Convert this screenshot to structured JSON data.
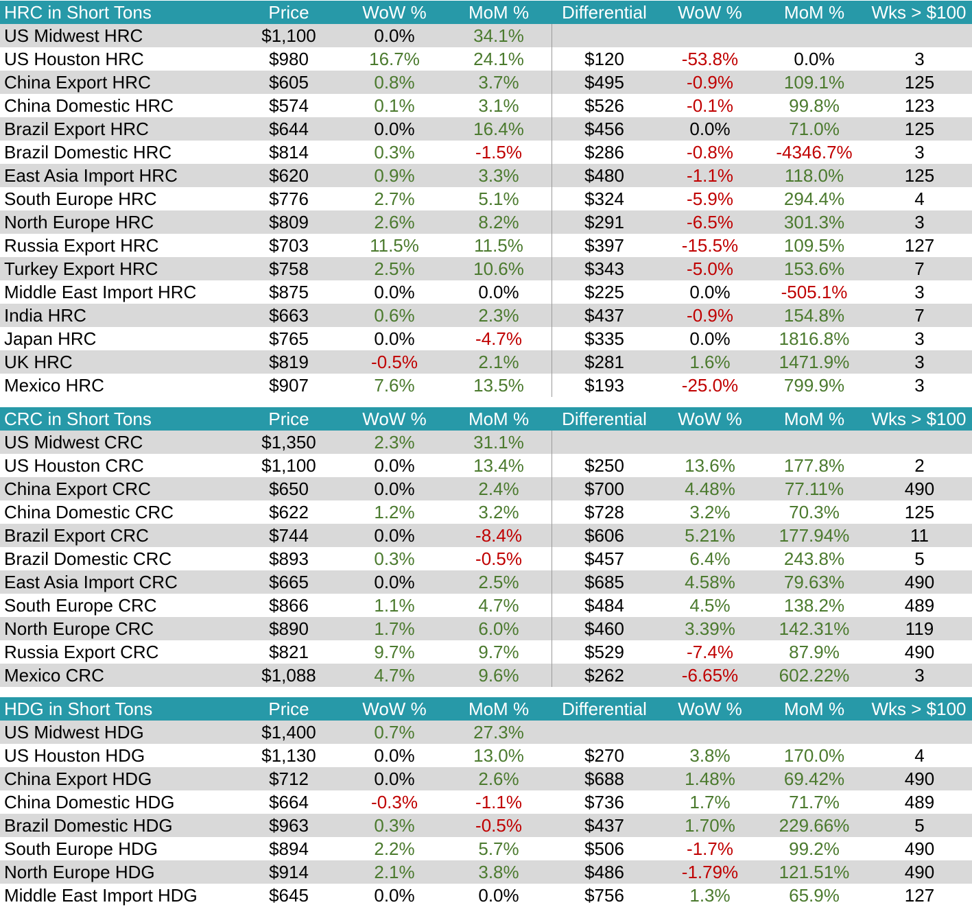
{
  "colors": {
    "header_bg": "#2799a8",
    "shade_bg": "#d9d9d9",
    "positive": "#4b7a2e",
    "negative": "#c00000",
    "neutral": "#000000"
  },
  "sections": [
    {
      "title": "HRC in Short Tons",
      "headers": {
        "price": "Price",
        "wow": "WoW %",
        "mom": "MoM %",
        "diff": "Differential",
        "dwow": "WoW %",
        "dmom": "MoM %",
        "wks": "Wks > $100"
      },
      "rows": [
        {
          "name": "US Midwest HRC",
          "price": "$1,100",
          "wow": "0.0%",
          "mom": "34.1%",
          "diff": "",
          "dwow": "",
          "dmom": "",
          "wks": ""
        },
        {
          "name": "US Houston HRC",
          "price": "$980",
          "wow": "16.7%",
          "mom": "24.1%",
          "diff": "$120",
          "dwow": "-53.8%",
          "dmom": "0.0%",
          "wks": "3"
        },
        {
          "name": "China Export HRC",
          "price": "$605",
          "wow": "0.8%",
          "mom": "3.7%",
          "diff": "$495",
          "dwow": "-0.9%",
          "dmom": "109.1%",
          "wks": "125"
        },
        {
          "name": "China Domestic HRC",
          "price": "$574",
          "wow": "0.1%",
          "mom": "3.1%",
          "diff": "$526",
          "dwow": "-0.1%",
          "dmom": "99.8%",
          "wks": "123"
        },
        {
          "name": "Brazil Export HRC",
          "price": "$644",
          "wow": "0.0%",
          "mom": "16.4%",
          "diff": "$456",
          "dwow": "0.0%",
          "dmom": "71.0%",
          "wks": "125"
        },
        {
          "name": "Brazil Domestic HRC",
          "price": "$814",
          "wow": "0.3%",
          "mom": "-1.5%",
          "diff": "$286",
          "dwow": "-0.8%",
          "dmom": "-4346.7%",
          "wks": "3"
        },
        {
          "name": "East Asia Import HRC",
          "price": "$620",
          "wow": "0.9%",
          "mom": "3.3%",
          "diff": "$480",
          "dwow": "-1.1%",
          "dmom": "118.0%",
          "wks": "125"
        },
        {
          "name": "South Europe HRC",
          "price": "$776",
          "wow": "2.7%",
          "mom": "5.1%",
          "diff": "$324",
          "dwow": "-5.9%",
          "dmom": "294.4%",
          "wks": "4"
        },
        {
          "name": "North Europe HRC",
          "price": "$809",
          "wow": "2.6%",
          "mom": "8.2%",
          "diff": "$291",
          "dwow": "-6.5%",
          "dmom": "301.3%",
          "wks": "3"
        },
        {
          "name": "Russia Export HRC",
          "price": "$703",
          "wow": "11.5%",
          "mom": "11.5%",
          "diff": "$397",
          "dwow": "-15.5%",
          "dmom": "109.5%",
          "wks": "127"
        },
        {
          "name": "Turkey Export HRC",
          "price": "$758",
          "wow": "2.5%",
          "mom": "10.6%",
          "diff": "$343",
          "dwow": "-5.0%",
          "dmom": "153.6%",
          "wks": "7"
        },
        {
          "name": "Middle East Import HRC",
          "price": "$875",
          "wow": "0.0%",
          "mom": "0.0%",
          "diff": "$225",
          "dwow": "0.0%",
          "dmom": "-505.1%",
          "wks": "3"
        },
        {
          "name": "India HRC",
          "price": "$663",
          "wow": "0.6%",
          "mom": "2.3%",
          "diff": "$437",
          "dwow": "-0.9%",
          "dmom": "154.8%",
          "wks": "7"
        },
        {
          "name": "Japan HRC",
          "price": "$765",
          "wow": "0.0%",
          "mom": "-4.7%",
          "diff": "$335",
          "dwow": "0.0%",
          "dmom": "1816.8%",
          "wks": "3"
        },
        {
          "name": "UK HRC",
          "price": "$819",
          "wow": "-0.5%",
          "mom": "2.1%",
          "diff": "$281",
          "dwow": "1.6%",
          "dmom": "1471.9%",
          "wks": "3"
        },
        {
          "name": "Mexico HRC",
          "price": "$907",
          "wow": "7.6%",
          "mom": "13.5%",
          "diff": "$193",
          "dwow": "-25.0%",
          "dmom": "799.9%",
          "wks": "3"
        }
      ]
    },
    {
      "title": "CRC in Short Tons",
      "headers": {
        "price": "Price",
        "wow": "WoW %",
        "mom": "MoM %",
        "diff": "Differential",
        "dwow": "WoW %",
        "dmom": "MoM %",
        "wks": "Wks > $100"
      },
      "rows": [
        {
          "name": "US Midwest CRC",
          "price": "$1,350",
          "wow": "2.3%",
          "mom": "31.1%",
          "diff": "",
          "dwow": "",
          "dmom": "",
          "wks": ""
        },
        {
          "name": "US Houston CRC",
          "price": "$1,100",
          "wow": "0.0%",
          "mom": "13.4%",
          "diff": "$250",
          "dwow": "13.6%",
          "dmom": "177.8%",
          "wks": "2"
        },
        {
          "name": "China Export CRC",
          "price": "$650",
          "wow": "0.0%",
          "mom": "2.4%",
          "diff": "$700",
          "dwow": "4.48%",
          "dmom": "77.11%",
          "wks": "490"
        },
        {
          "name": "China Domestic CRC",
          "price": "$622",
          "wow": "1.2%",
          "mom": "3.2%",
          "diff": "$728",
          "dwow": "3.2%",
          "dmom": "70.3%",
          "wks": "125"
        },
        {
          "name": "Brazil Export CRC",
          "price": "$744",
          "wow": "0.0%",
          "mom": "-8.4%",
          "diff": "$606",
          "dwow": "5.21%",
          "dmom": "177.94%",
          "wks": "11"
        },
        {
          "name": "Brazil Domestic CRC",
          "price": "$893",
          "wow": "0.3%",
          "mom": "-0.5%",
          "diff": "$457",
          "dwow": "6.4%",
          "dmom": "243.8%",
          "wks": "5"
        },
        {
          "name": "East Asia Import CRC",
          "price": "$665",
          "wow": "0.0%",
          "mom": "2.5%",
          "diff": "$685",
          "dwow": "4.58%",
          "dmom": "79.63%",
          "wks": "490"
        },
        {
          "name": "South Europe CRC",
          "price": "$866",
          "wow": "1.1%",
          "mom": "4.7%",
          "diff": "$484",
          "dwow": "4.5%",
          "dmom": "138.2%",
          "wks": "489"
        },
        {
          "name": "North Europe CRC",
          "price": "$890",
          "wow": "1.7%",
          "mom": "6.0%",
          "diff": "$460",
          "dwow": "3.39%",
          "dmom": "142.31%",
          "wks": "119"
        },
        {
          "name": "Russia Export CRC",
          "price": "$821",
          "wow": "9.7%",
          "mom": "9.7%",
          "diff": "$529",
          "dwow": "-7.4%",
          "dmom": "87.9%",
          "wks": "490"
        },
        {
          "name": "Mexico CRC",
          "price": "$1,088",
          "wow": "4.7%",
          "mom": "9.6%",
          "diff": "$262",
          "dwow": "-6.65%",
          "dmom": "602.22%",
          "wks": "3"
        }
      ]
    },
    {
      "title": "HDG in Short Tons",
      "headers": {
        "price": "Price",
        "wow": "WoW %",
        "mom": "MoM %",
        "diff": "Differential",
        "dwow": "WoW %",
        "dmom": "MoM %",
        "wks": "Wks > $100"
      },
      "rows": [
        {
          "name": "US Midwest HDG",
          "price": "$1,400",
          "wow": "0.7%",
          "mom": "27.3%",
          "diff": "",
          "dwow": "",
          "dmom": "",
          "wks": ""
        },
        {
          "name": "US Houston HDG",
          "price": "$1,130",
          "wow": "0.0%",
          "mom": "13.0%",
          "diff": "$270",
          "dwow": "3.8%",
          "dmom": "170.0%",
          "wks": "4"
        },
        {
          "name": "China Export HDG",
          "price": "$712",
          "wow": "0.0%",
          "mom": "2.6%",
          "diff": "$688",
          "dwow": "1.48%",
          "dmom": "69.42%",
          "wks": "490"
        },
        {
          "name": "China Domestic HDG",
          "price": "$664",
          "wow": "-0.3%",
          "mom": "-1.1%",
          "diff": "$736",
          "dwow": "1.7%",
          "dmom": "71.7%",
          "wks": "489"
        },
        {
          "name": "Brazil Domestic HDG",
          "price": "$963",
          "wow": "0.3%",
          "mom": "-0.5%",
          "diff": "$437",
          "dwow": "1.70%",
          "dmom": "229.66%",
          "wks": "5"
        },
        {
          "name": "South Europe HDG",
          "price": "$894",
          "wow": "2.2%",
          "mom": "5.7%",
          "diff": "$506",
          "dwow": "-1.7%",
          "dmom": "99.2%",
          "wks": "490"
        },
        {
          "name": "North Europe HDG",
          "price": "$914",
          "wow": "2.1%",
          "mom": "3.8%",
          "diff": "$486",
          "dwow": "-1.79%",
          "dmom": "121.51%",
          "wks": "490"
        },
        {
          "name": "Middle East Import HDG",
          "price": "$645",
          "wow": "0.0%",
          "mom": "0.0%",
          "diff": "$756",
          "dwow": "1.3%",
          "dmom": "65.9%",
          "wks": "127"
        }
      ]
    }
  ]
}
